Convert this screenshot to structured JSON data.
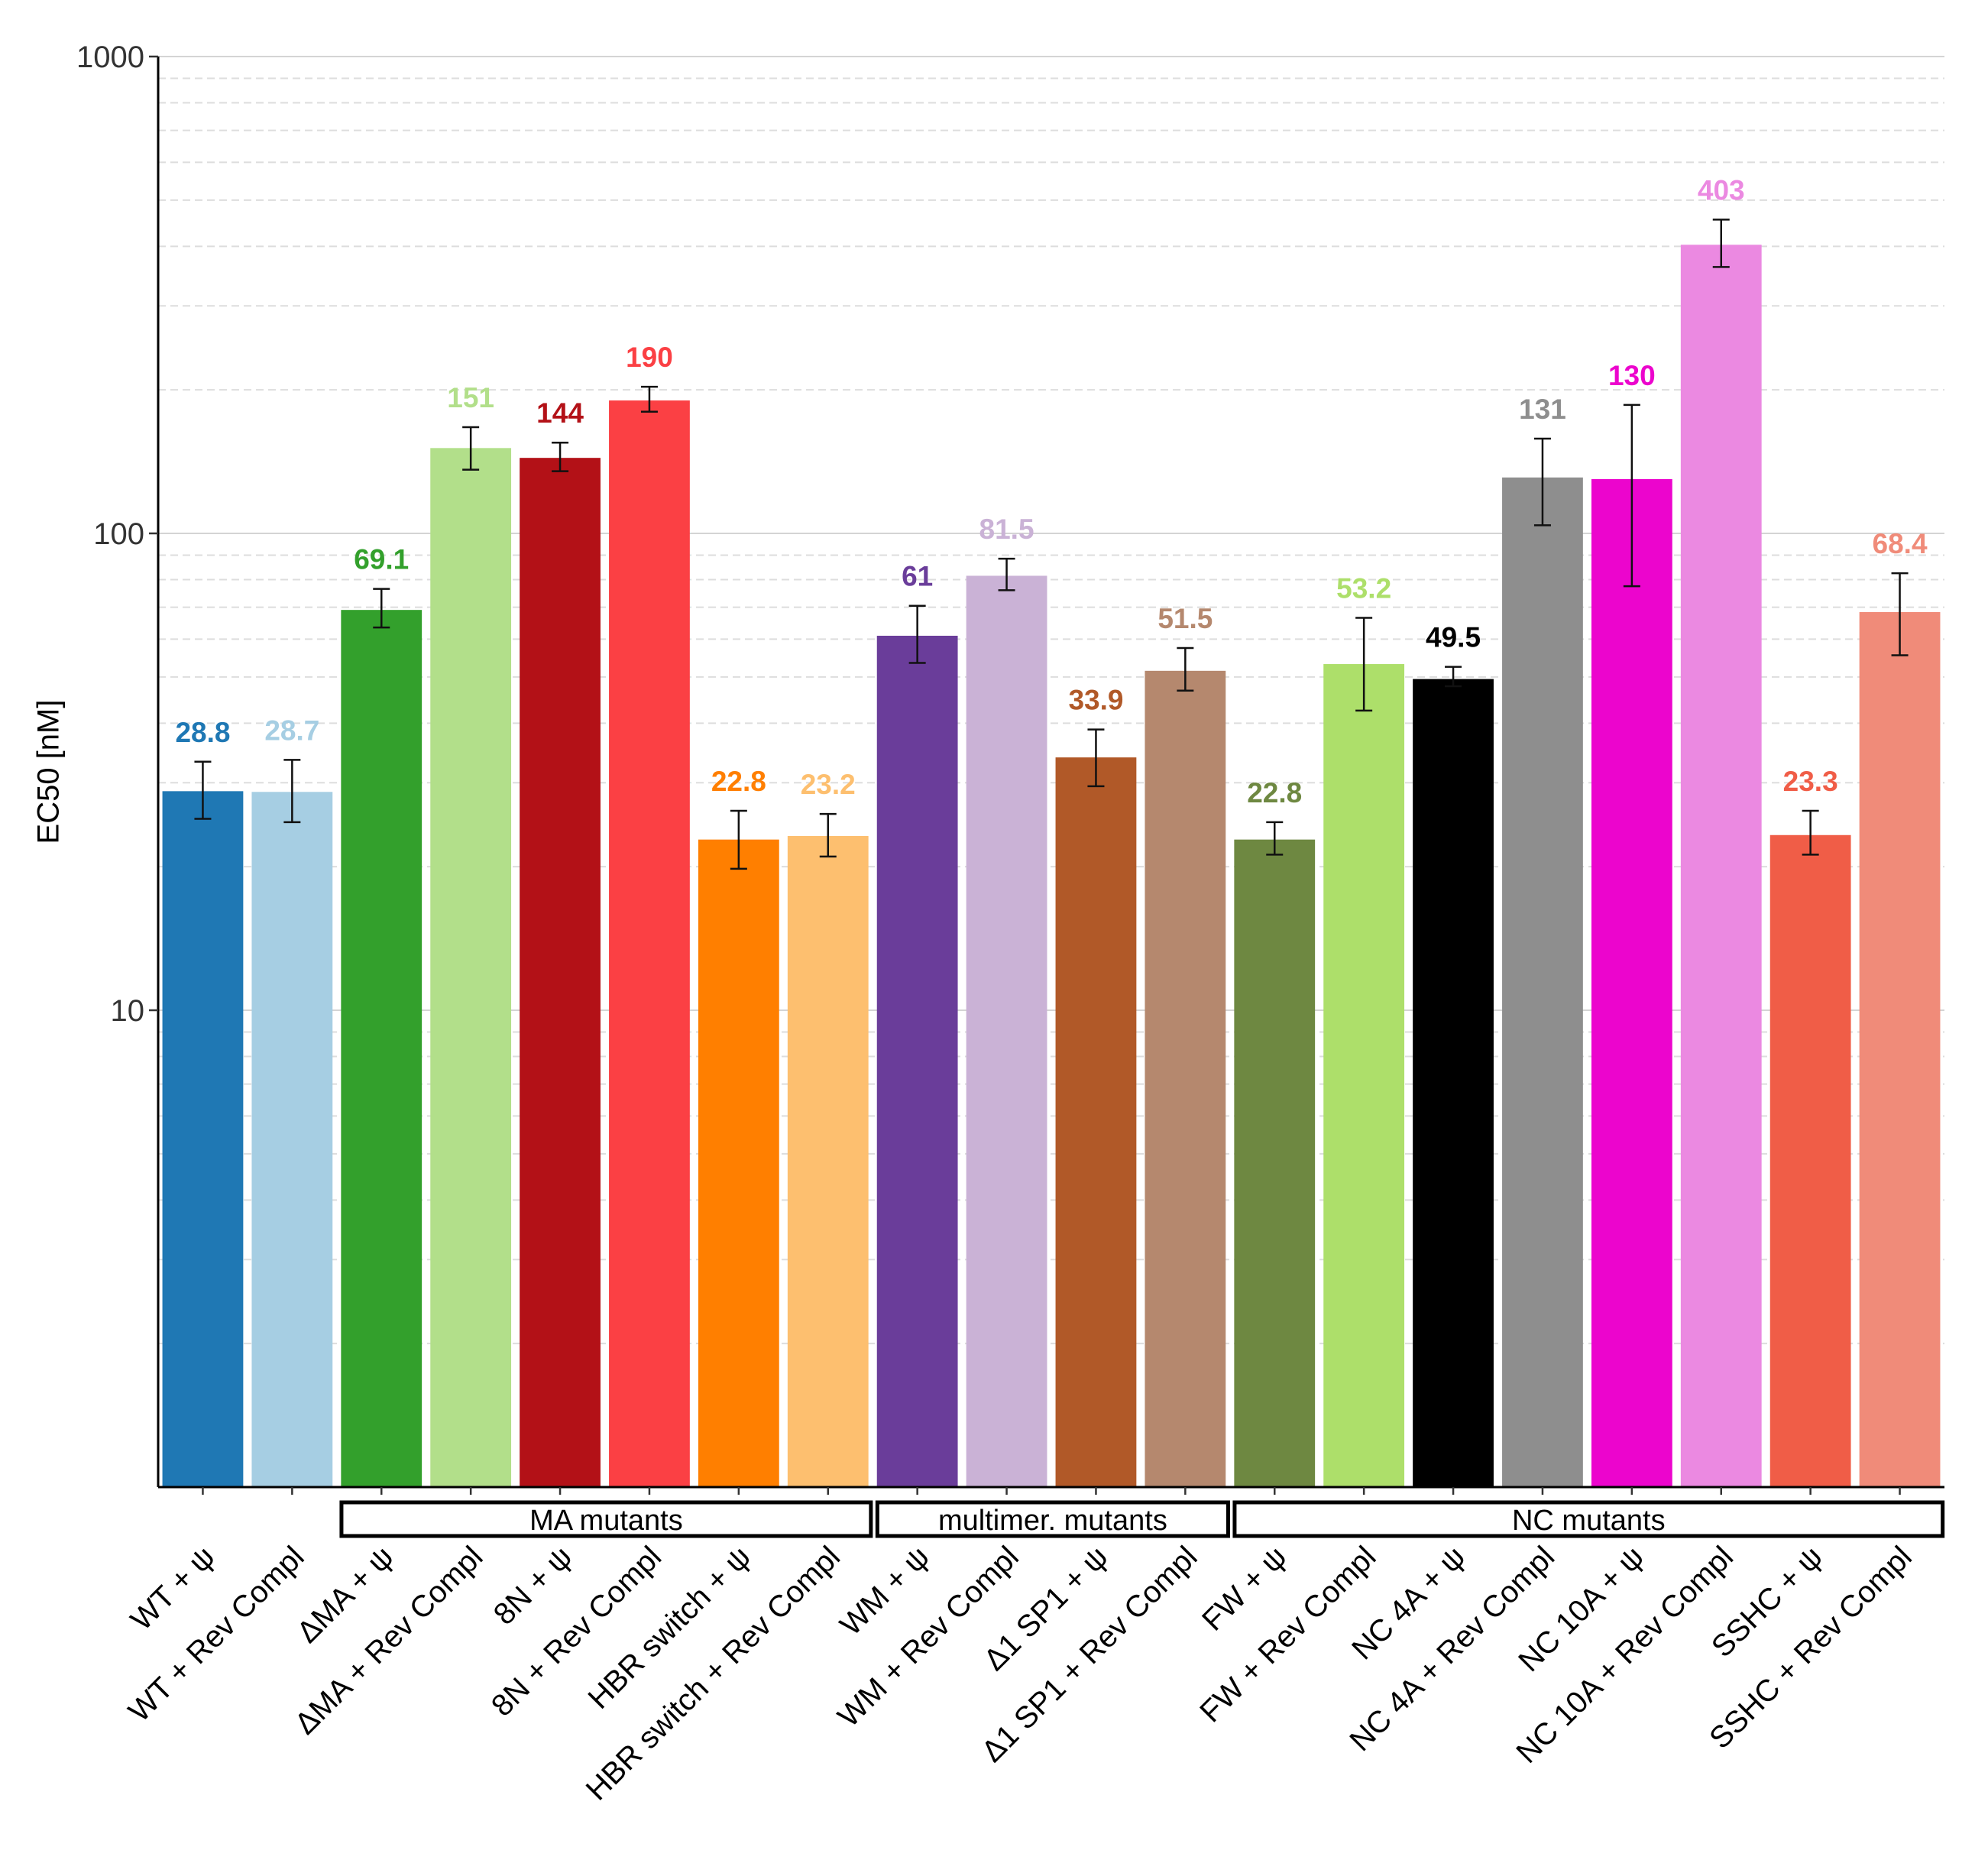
{
  "chart_data": {
    "type": "bar",
    "title": "",
    "xlabel": "",
    "ylabel": "EC50 [nM]",
    "yscale": "log",
    "ylim": [
      1,
      1000
    ],
    "yticks": [
      10,
      100,
      1000
    ],
    "ytick_labels": [
      "10",
      "100",
      "1000"
    ],
    "grid": true,
    "categories": [
      "WT + ψ",
      "WT + Rev Compl",
      "ΔMA + ψ",
      "ΔMA + Rev Compl",
      "8N + ψ",
      "8N + Rev Compl",
      "HBR switch + ψ",
      "HBR switch + Rev Compl",
      "WM + ψ",
      "WM + Rev Compl",
      "Δ1 SP1 + ψ",
      "Δ1 SP1 + Rev Compl",
      "FW + ψ",
      "FW + Rev Compl",
      "NC 4A + ψ",
      "NC 4A + Rev Compl",
      "NC 10A + ψ",
      "NC 10A + Rev Compl",
      "SSHC + ψ",
      "SSHC + Rev Compl"
    ],
    "values": [
      28.8,
      28.7,
      69.1,
      151,
      144,
      190,
      22.8,
      23.2,
      61,
      81.5,
      33.9,
      51.5,
      22.8,
      53.2,
      49.5,
      131,
      130,
      403,
      23.3,
      68.4
    ],
    "value_labels": [
      "28.8",
      "28.7",
      "69.1",
      "151",
      "144",
      "190",
      "22.8",
      "23.2",
      "61",
      "81.5",
      "33.9",
      "51.5",
      "22.8",
      "53.2",
      "49.5",
      "131",
      "130",
      "403",
      "23.3",
      "68.4"
    ],
    "error_low": [
      25.2,
      24.8,
      63.5,
      136,
      135,
      180,
      19.8,
      21.0,
      53.5,
      76,
      29.5,
      46.8,
      21.2,
      42.5,
      47.8,
      104,
      77.5,
      362,
      21.2,
      55.5
    ],
    "error_high": [
      33.2,
      33.5,
      76.5,
      167,
      155,
      203,
      26.2,
      25.8,
      70.5,
      88.5,
      38.8,
      57.5,
      24.8,
      66.5,
      52.5,
      158,
      186,
      455,
      26.2,
      82.5
    ],
    "colors": [
      "#1f78b4",
      "#a6cee3",
      "#33a02c",
      "#b2df8a",
      "#b31117",
      "#fb4044",
      "#ff7f00",
      "#fdbf6f",
      "#6a3d9a",
      "#cab2d6",
      "#b15928",
      "#b5886e",
      "#6e8841",
      "#addf6a",
      "#000000",
      "#8e8e8e",
      "#ec05cd",
      "#eb89e1",
      "#f05d47",
      "#f08b79"
    ],
    "groups": [
      {
        "label": "MA mutants",
        "start": 2,
        "end": 7
      },
      {
        "label": "multimer. mutants",
        "start": 8,
        "end": 11
      },
      {
        "label": "NC mutants",
        "start": 12,
        "end": 19
      }
    ]
  }
}
